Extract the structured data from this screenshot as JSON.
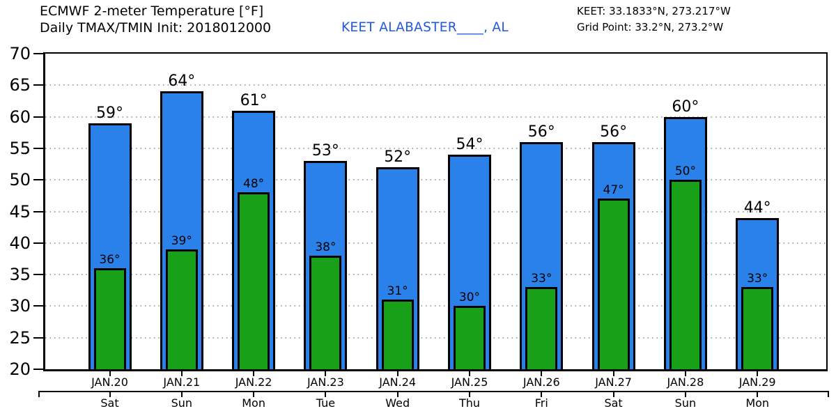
{
  "header": {
    "title_line1": "ECMWF 2-meter Temperature [°F]",
    "title_line2": "Daily TMAX/TMIN Init: 2018012000",
    "station_name": "KEET ALABASTER____, AL",
    "info_line1": "KEET: 33.1833°N, 273.217°W",
    "info_line2": "Grid Point: 33.2°N, 273.2°W"
  },
  "colors": {
    "tmax_bar": "#2A81E9",
    "tmin_bar": "#18A018",
    "bar_outline": "#000000",
    "station_link": "#2257E0",
    "grid": "#A6A6A6"
  },
  "chart_data": {
    "type": "bar",
    "title": "ECMWF 2-meter Temperature [°F]",
    "subtitle": "Daily TMAX/TMIN Init: 2018012000",
    "categories": [
      "JAN.20",
      "JAN.21",
      "JAN.22",
      "JAN.23",
      "JAN.24",
      "JAN.25",
      "JAN.26",
      "JAN.27",
      "JAN.28",
      "JAN.29"
    ],
    "weekdays": [
      "Sat",
      "Sun",
      "Mon",
      "Tue",
      "Wed",
      "Thu",
      "Fri",
      "Sat",
      "Sun",
      "Mon"
    ],
    "series": [
      {
        "name": "TMAX",
        "color": "#2A81E9",
        "values": [
          59,
          64,
          61,
          53,
          52,
          54,
          56,
          56,
          60,
          44
        ]
      },
      {
        "name": "TMIN",
        "color": "#18A018",
        "values": [
          36,
          39,
          48,
          38,
          31,
          30,
          33,
          47,
          50,
          33
        ]
      }
    ],
    "unit_suffix": "°",
    "ylim": [
      20,
      70
    ],
    "yticks": [
      20,
      25,
      30,
      35,
      40,
      45,
      50,
      55,
      60,
      65,
      70
    ],
    "grid": "horizontal-dotted",
    "legend_position": "none"
  }
}
